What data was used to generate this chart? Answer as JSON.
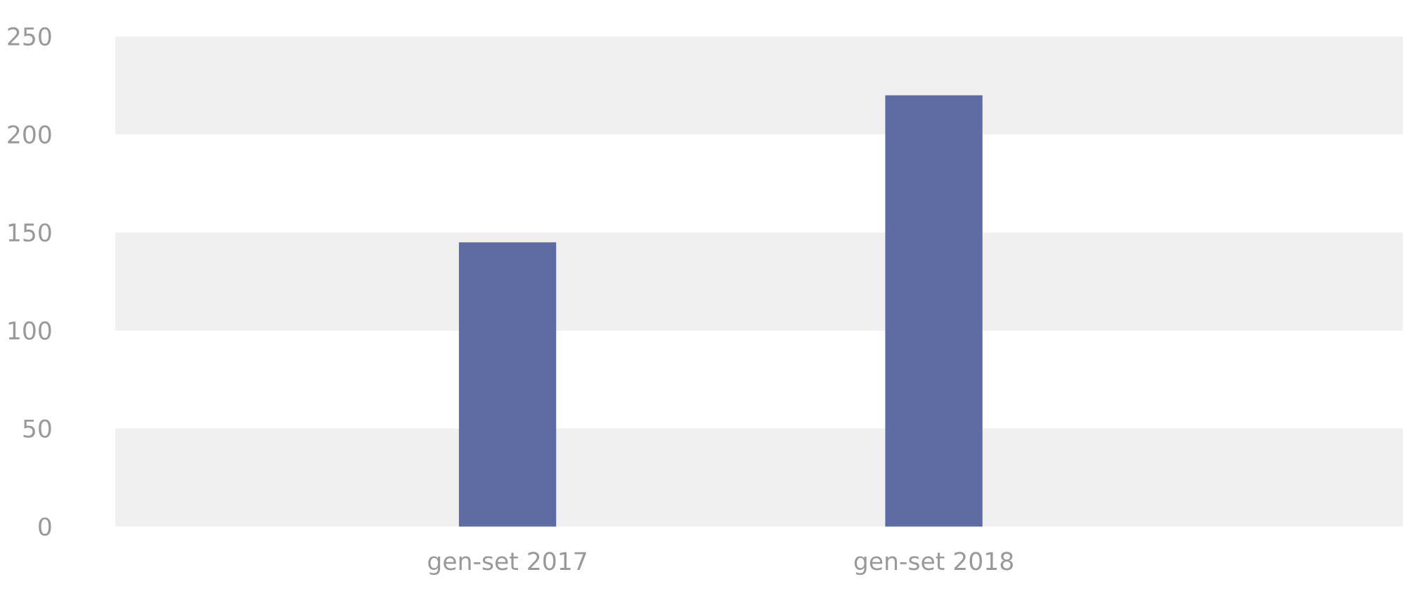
{
  "chart_data": {
    "type": "bar",
    "categories": [
      "gen-set 2017",
      "gen-set 2018"
    ],
    "values": [
      145,
      220
    ],
    "color": "#5f6ca3",
    "ylim": [
      0,
      250
    ],
    "yticks": [
      0,
      50,
      100,
      150,
      200,
      250
    ]
  }
}
